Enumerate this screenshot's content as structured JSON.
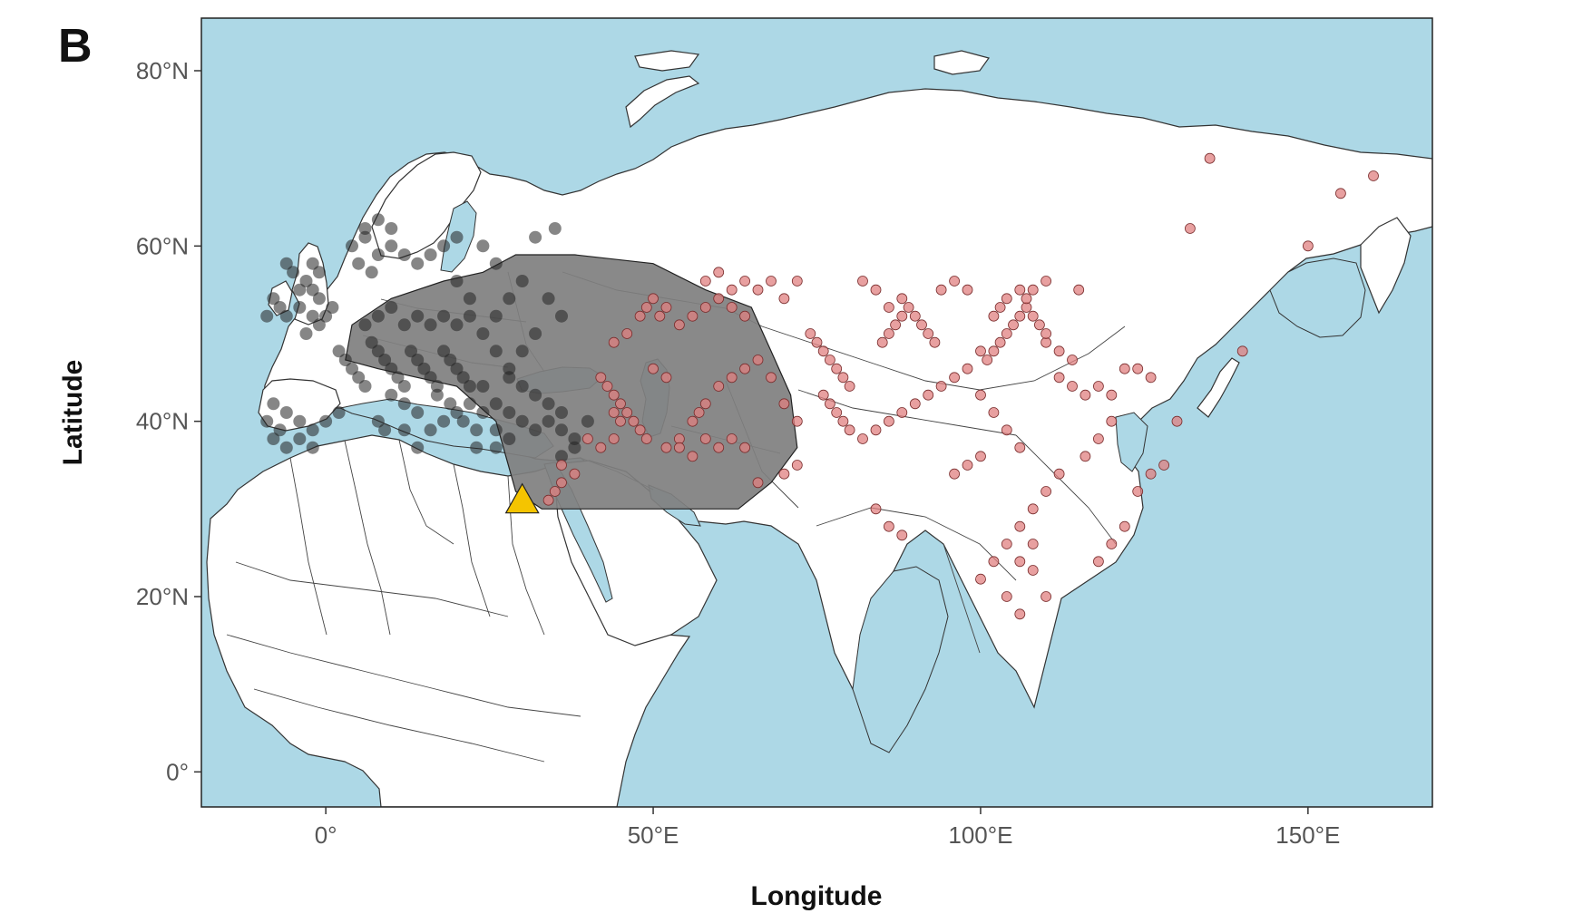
{
  "panel_label": "B",
  "xlabel": "Longitude",
  "ylabel": "Latitude",
  "colors": {
    "ocean": "#add8e6",
    "land": "#ffffff",
    "range_polygon": "#7f7f7f",
    "points_black": "#222222",
    "points_red": "#e08080",
    "marker_triangle": "#f5c400"
  },
  "chart_data": {
    "type": "scatter",
    "projection": "equirectangular",
    "xlim": [
      -19,
      169
    ],
    "ylim": [
      -4,
      86
    ],
    "x_ticks": [
      0,
      50,
      100,
      150
    ],
    "x_tick_labels": [
      "0°",
      "50°E",
      "100°E",
      "150°E"
    ],
    "y_ticks": [
      0,
      20,
      40,
      60,
      80
    ],
    "y_tick_labels": [
      "0°",
      "20°N",
      "40°N",
      "60°N",
      "80°N"
    ],
    "range_polygon": [
      [
        29,
        59
      ],
      [
        38,
        59
      ],
      [
        50,
        58
      ],
      [
        58,
        55
      ],
      [
        65,
        53
      ],
      [
        68,
        48
      ],
      [
        71,
        43
      ],
      [
        72,
        37
      ],
      [
        68,
        33
      ],
      [
        63,
        30
      ],
      [
        55,
        30
      ],
      [
        48,
        30
      ],
      [
        40,
        30
      ],
      [
        33,
        30
      ],
      [
        29,
        32
      ],
      [
        26,
        40
      ],
      [
        20,
        44
      ],
      [
        8,
        46
      ],
      [
        3,
        47
      ],
      [
        4,
        51
      ],
      [
        10,
        54
      ],
      [
        18,
        56
      ],
      [
        24,
        57
      ]
    ],
    "marker_triangle": [
      30,
      31
    ],
    "series": [
      {
        "points": [
          [
            -6,
            58
          ],
          [
            -5,
            57
          ],
          [
            -3,
            56
          ],
          [
            -2,
            55
          ],
          [
            -1,
            54
          ],
          [
            -4,
            53
          ],
          [
            -2,
            52
          ],
          [
            -1,
            51
          ],
          [
            0,
            52
          ],
          [
            1,
            53
          ],
          [
            -8,
            54
          ],
          [
            -7,
            53
          ],
          [
            -9,
            52
          ],
          [
            -6,
            52
          ],
          [
            -3,
            50
          ],
          [
            -2,
            58
          ],
          [
            -4,
            55
          ],
          [
            -1,
            57
          ],
          [
            2,
            48
          ],
          [
            3,
            47
          ],
          [
            4,
            46
          ],
          [
            5,
            45
          ],
          [
            6,
            44
          ],
          [
            7,
            49
          ],
          [
            8,
            48
          ],
          [
            9,
            47
          ],
          [
            10,
            46
          ],
          [
            11,
            45
          ],
          [
            12,
            44
          ],
          [
            13,
            48
          ],
          [
            14,
            47
          ],
          [
            15,
            46
          ],
          [
            16,
            45
          ],
          [
            17,
            44
          ],
          [
            18,
            48
          ],
          [
            19,
            47
          ],
          [
            20,
            46
          ],
          [
            21,
            45
          ],
          [
            22,
            44
          ],
          [
            6,
            51
          ],
          [
            8,
            52
          ],
          [
            10,
            53
          ],
          [
            12,
            51
          ],
          [
            14,
            52
          ],
          [
            16,
            51
          ],
          [
            18,
            52
          ],
          [
            20,
            51
          ],
          [
            22,
            52
          ],
          [
            24,
            50
          ],
          [
            26,
            48
          ],
          [
            28,
            46
          ],
          [
            24,
            44
          ],
          [
            22,
            42
          ],
          [
            20,
            41
          ],
          [
            18,
            40
          ],
          [
            16,
            39
          ],
          [
            14,
            41
          ],
          [
            12,
            42
          ],
          [
            10,
            43
          ],
          [
            -8,
            42
          ],
          [
            -6,
            41
          ],
          [
            -4,
            40
          ],
          [
            -2,
            39
          ],
          [
            -8,
            38
          ],
          [
            -6,
            37
          ],
          [
            -4,
            38
          ],
          [
            -2,
            37
          ],
          [
            0,
            40
          ],
          [
            2,
            41
          ],
          [
            -9,
            40
          ],
          [
            -7,
            39
          ],
          [
            4,
            60
          ],
          [
            6,
            61
          ],
          [
            8,
            59
          ],
          [
            10,
            60
          ],
          [
            12,
            59
          ],
          [
            14,
            58
          ],
          [
            16,
            59
          ],
          [
            18,
            60
          ],
          [
            20,
            61
          ],
          [
            24,
            60
          ],
          [
            26,
            58
          ],
          [
            6,
            62
          ],
          [
            8,
            63
          ],
          [
            10,
            62
          ],
          [
            28,
            45
          ],
          [
            30,
            44
          ],
          [
            32,
            43
          ],
          [
            34,
            42
          ],
          [
            36,
            41
          ],
          [
            26,
            42
          ],
          [
            28,
            41
          ],
          [
            30,
            40
          ],
          [
            32,
            39
          ],
          [
            34,
            40
          ],
          [
            36,
            39
          ],
          [
            38,
            38
          ],
          [
            26,
            39
          ],
          [
            28,
            38
          ],
          [
            23,
            39
          ],
          [
            24,
            41
          ],
          [
            26,
            37
          ],
          [
            17,
            43
          ],
          [
            19,
            42
          ],
          [
            21,
            40
          ],
          [
            23,
            37
          ],
          [
            8,
            40
          ],
          [
            9,
            39
          ],
          [
            12,
            39
          ],
          [
            14,
            37
          ],
          [
            38,
            37
          ],
          [
            36,
            36
          ],
          [
            40,
            40
          ],
          [
            30,
            48
          ],
          [
            32,
            50
          ],
          [
            36,
            52
          ],
          [
            34,
            54
          ],
          [
            30,
            56
          ],
          [
            28,
            54
          ],
          [
            26,
            52
          ],
          [
            22,
            54
          ],
          [
            20,
            56
          ],
          [
            5,
            58
          ],
          [
            7,
            57
          ],
          [
            35,
            62
          ],
          [
            32,
            61
          ]
        ]
      },
      {
        "points": [
          [
            42,
            45
          ],
          [
            43,
            44
          ],
          [
            44,
            43
          ],
          [
            45,
            42
          ],
          [
            44,
            41
          ],
          [
            45,
            40
          ],
          [
            46,
            41
          ],
          [
            47,
            40
          ],
          [
            44,
            38
          ],
          [
            42,
            37
          ],
          [
            40,
            38
          ],
          [
            48,
            39
          ],
          [
            49,
            38
          ],
          [
            52,
            37
          ],
          [
            54,
            38
          ],
          [
            56,
            40
          ],
          [
            57,
            41
          ],
          [
            58,
            42
          ],
          [
            60,
            44
          ],
          [
            62,
            45
          ],
          [
            64,
            46
          ],
          [
            66,
            47
          ],
          [
            68,
            45
          ],
          [
            70,
            42
          ],
          [
            72,
            40
          ],
          [
            48,
            52
          ],
          [
            49,
            53
          ],
          [
            50,
            54
          ],
          [
            51,
            52
          ],
          [
            52,
            53
          ],
          [
            54,
            51
          ],
          [
            56,
            52
          ],
          [
            58,
            53
          ],
          [
            60,
            54
          ],
          [
            62,
            53
          ],
          [
            64,
            52
          ],
          [
            46,
            50
          ],
          [
            44,
            49
          ],
          [
            50,
            46
          ],
          [
            52,
            45
          ],
          [
            74,
            50
          ],
          [
            75,
            49
          ],
          [
            76,
            48
          ],
          [
            77,
            47
          ],
          [
            78,
            46
          ],
          [
            79,
            45
          ],
          [
            80,
            44
          ],
          [
            76,
            43
          ],
          [
            77,
            42
          ],
          [
            78,
            41
          ],
          [
            79,
            40
          ],
          [
            80,
            39
          ],
          [
            82,
            38
          ],
          [
            84,
            39
          ],
          [
            86,
            40
          ],
          [
            88,
            41
          ],
          [
            90,
            42
          ],
          [
            92,
            43
          ],
          [
            94,
            44
          ],
          [
            96,
            45
          ],
          [
            98,
            46
          ],
          [
            85,
            49
          ],
          [
            86,
            50
          ],
          [
            87,
            51
          ],
          [
            88,
            52
          ],
          [
            89,
            53
          ],
          [
            90,
            52
          ],
          [
            91,
            51
          ],
          [
            92,
            50
          ],
          [
            93,
            49
          ],
          [
            100,
            48
          ],
          [
            101,
            47
          ],
          [
            102,
            48
          ],
          [
            103,
            49
          ],
          [
            104,
            50
          ],
          [
            105,
            51
          ],
          [
            106,
            52
          ],
          [
            107,
            53
          ],
          [
            108,
            52
          ],
          [
            109,
            51
          ],
          [
            110,
            49
          ],
          [
            112,
            48
          ],
          [
            114,
            47
          ],
          [
            102,
            52
          ],
          [
            103,
            53
          ],
          [
            104,
            54
          ],
          [
            106,
            55
          ],
          [
            107,
            54
          ],
          [
            108,
            55
          ],
          [
            110,
            50
          ],
          [
            112,
            45
          ],
          [
            114,
            44
          ],
          [
            116,
            43
          ],
          [
            118,
            44
          ],
          [
            120,
            43
          ],
          [
            122,
            46
          ],
          [
            124,
            46
          ],
          [
            126,
            45
          ],
          [
            128,
            35
          ],
          [
            120,
            40
          ],
          [
            118,
            38
          ],
          [
            116,
            36
          ],
          [
            112,
            34
          ],
          [
            110,
            32
          ],
          [
            108,
            30
          ],
          [
            106,
            28
          ],
          [
            104,
            26
          ],
          [
            102,
            24
          ],
          [
            100,
            22
          ],
          [
            106,
            24
          ],
          [
            108,
            26
          ],
          [
            118,
            24
          ],
          [
            120,
            26
          ],
          [
            122,
            28
          ],
          [
            124,
            32
          ],
          [
            126,
            34
          ],
          [
            130,
            40
          ],
          [
            132,
            62
          ],
          [
            150,
            60
          ],
          [
            155,
            66
          ],
          [
            160,
            68
          ],
          [
            135,
            70
          ],
          [
            140,
            48
          ],
          [
            110,
            56
          ],
          [
            115,
            55
          ],
          [
            82,
            56
          ],
          [
            72,
            56
          ],
          [
            70,
            54
          ],
          [
            68,
            56
          ],
          [
            66,
            55
          ],
          [
            64,
            56
          ],
          [
            62,
            55
          ],
          [
            60,
            57
          ],
          [
            58,
            56
          ],
          [
            84,
            55
          ],
          [
            86,
            53
          ],
          [
            88,
            54
          ],
          [
            94,
            55
          ],
          [
            96,
            56
          ],
          [
            98,
            55
          ],
          [
            100,
            43
          ],
          [
            102,
            41
          ],
          [
            104,
            39
          ],
          [
            106,
            37
          ],
          [
            100,
            36
          ],
          [
            98,
            35
          ],
          [
            96,
            34
          ],
          [
            84,
            30
          ],
          [
            86,
            28
          ],
          [
            88,
            27
          ],
          [
            108,
            23
          ],
          [
            110,
            20
          ],
          [
            104,
            20
          ],
          [
            106,
            18
          ],
          [
            72,
            35
          ],
          [
            70,
            34
          ],
          [
            66,
            33
          ],
          [
            64,
            37
          ],
          [
            62,
            38
          ],
          [
            60,
            37
          ],
          [
            58,
            38
          ],
          [
            56,
            36
          ],
          [
            54,
            37
          ],
          [
            36,
            33
          ],
          [
            35,
            32
          ],
          [
            34,
            31
          ],
          [
            36,
            35
          ],
          [
            38,
            34
          ]
        ]
      }
    ]
  }
}
